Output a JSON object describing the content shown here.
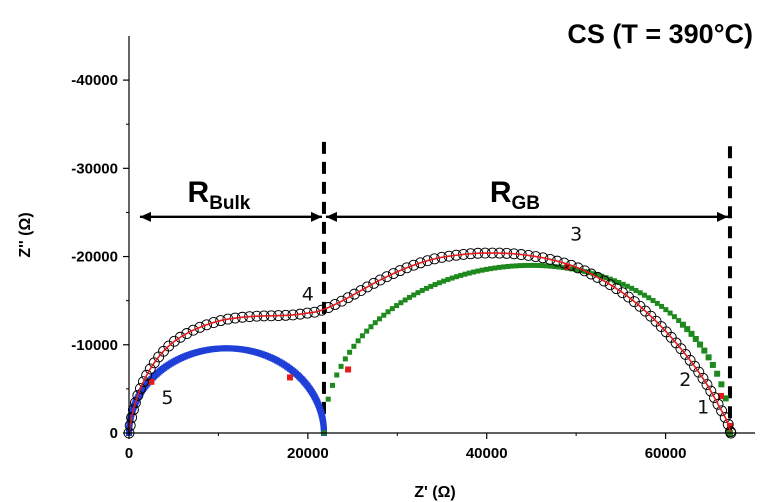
{
  "chart_data": {
    "type": "scatter",
    "title": "CS (T = 390°C)",
    "xlabel": "Z' (Ω)",
    "ylabel": "Z'' (Ω)",
    "xlim": [
      0,
      70000
    ],
    "ylim": [
      0,
      -45000
    ],
    "x_ticks": [
      0,
      20000,
      40000,
      60000
    ],
    "x_tick_labels": [
      "0",
      "20000",
      "40000",
      "60000"
    ],
    "y_ticks": [
      0,
      -10000,
      -20000,
      -30000,
      -40000
    ],
    "y_tick_labels": [
      "0",
      "-10000",
      "-20000",
      "-30000",
      "-40000"
    ],
    "grid": false,
    "legend": "none",
    "colors": {
      "measured": "#000000",
      "fit": "#e41a1c",
      "bulk_arc": "#1f3fd8",
      "grain_boundary_arc": "#1e8a1e",
      "marker": "#e41a1c"
    },
    "measured": {
      "x": [
        0,
        300,
        900,
        1800,
        3000,
        4600,
        6500,
        8500,
        10500,
        12500,
        14500,
        16500,
        18500,
        20000,
        21000,
        22000,
        23500,
        25500,
        28000,
        31000,
        34000,
        37000,
        40000,
        42500,
        44500,
        47000,
        50000,
        53000,
        56000,
        59000,
        62000,
        64500,
        66000,
        67000,
        67300
      ],
      "y": [
        0,
        -1800,
        -4000,
        -6200,
        -8200,
        -10000,
        -11300,
        -12200,
        -12800,
        -13100,
        -13250,
        -13300,
        -13400,
        -13600,
        -13750,
        -14100,
        -14800,
        -15900,
        -17300,
        -18700,
        -19700,
        -20200,
        -20400,
        -20350,
        -20150,
        -19700,
        -18800,
        -17300,
        -15300,
        -12600,
        -9200,
        -5700,
        -3000,
        -1000,
        0
      ]
    },
    "fit": {
      "x": [
        0,
        300,
        900,
        1800,
        3000,
        4600,
        6500,
        8500,
        10500,
        12500,
        14500,
        16500,
        18500,
        20000,
        21000,
        22000,
        23500,
        25500,
        28000,
        31000,
        34000,
        37000,
        40000,
        42500,
        44500,
        47000,
        50000,
        53000,
        56000,
        59000,
        62000,
        64500,
        66000,
        67000,
        67300
      ],
      "y": [
        0,
        -1800,
        -4000,
        -6200,
        -8200,
        -10000,
        -11300,
        -12200,
        -12800,
        -13100,
        -13250,
        -13300,
        -13400,
        -13600,
        -13750,
        -14100,
        -14800,
        -15900,
        -17300,
        -18700,
        -19700,
        -20200,
        -20400,
        -20350,
        -20150,
        -19700,
        -18800,
        -17300,
        -15300,
        -12600,
        -9200,
        -5700,
        -3000,
        -1000,
        0
      ]
    },
    "bulk_arc": {
      "center_x": 10900,
      "radius_x": 10900,
      "radius_y": 9600,
      "x_start": 0,
      "x_end": 21800
    },
    "grain_boundary_arc": {
      "center_x": 44500,
      "radius_x": 22700,
      "radius_y": 19000,
      "x_start": 21800,
      "x_end": 67200,
      "peak_x": 45000
    },
    "markers": [
      {
        "x": 2500,
        "y": -5800
      },
      {
        "x": 18000,
        "y": -6300
      },
      {
        "x": 24500,
        "y": -7200
      },
      {
        "x": 49000,
        "y": -18800
      },
      {
        "x": 66200,
        "y": -4200
      },
      {
        "x": 67200,
        "y": -800
      }
    ],
    "boundaries": [
      {
        "x": 21800,
        "y_from": -33000,
        "y_to": 0
      },
      {
        "x": 67200,
        "y_from": -32500,
        "y_to": 0
      }
    ],
    "annotations": [
      {
        "text": "R",
        "sub": "Bulk",
        "x_from": 1000,
        "x_to": 21800,
        "y": -24500
      },
      {
        "text": "R",
        "sub": "GB",
        "x_from": 21800,
        "x_to": 67200,
        "y": -24500
      }
    ],
    "point_labels": [
      {
        "text": "1",
        "x": 64200,
        "y": -2200
      },
      {
        "text": "2",
        "x": 62200,
        "y": -5300
      },
      {
        "text": "3",
        "x": 50000,
        "y": -21800
      },
      {
        "text": "4",
        "x": 20000,
        "y": -15000
      },
      {
        "text": "5",
        "x": 4300,
        "y": -3300
      }
    ]
  }
}
